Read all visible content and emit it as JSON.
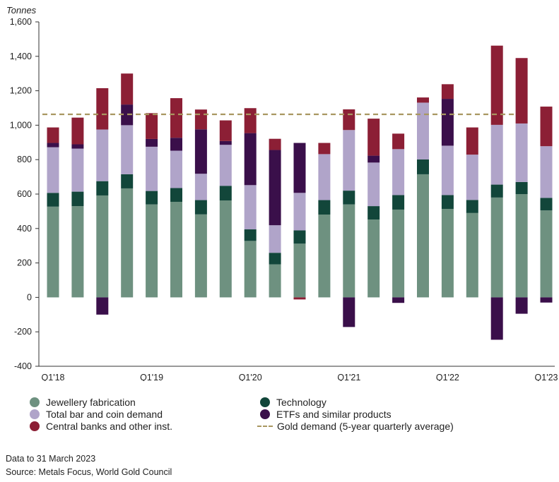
{
  "chart_data": {
    "type": "bar",
    "stacked": true,
    "ylabel": "Tonnes",
    "ylim": [
      -400,
      1600
    ],
    "yticks": [
      -400,
      -200,
      0,
      200,
      400,
      600,
      800,
      1000,
      1200,
      1400,
      1600
    ],
    "ytick_labels": [
      "-400",
      "-200",
      "0",
      "200",
      "400",
      "600",
      "800",
      "1,000",
      "1,200",
      "1,400",
      "1,600"
    ],
    "categories": [
      "Q1'18",
      "Q2'18",
      "Q3'18",
      "Q4'18",
      "Q1'19",
      "Q2'19",
      "Q3'19",
      "Q4'19",
      "Q1'20",
      "Q2'20",
      "Q3'20",
      "Q4'20",
      "Q1'21",
      "Q2'21",
      "Q3'21",
      "Q4'21",
      "Q1'22",
      "Q2'22",
      "Q3'22",
      "Q4'22",
      "Q1'23"
    ],
    "xtick_labels": [
      "Q1'18",
      "Q1'19",
      "Q1'20",
      "Q1'21",
      "Q1'22",
      "Q1'23"
    ],
    "xtick_indices": [
      0,
      4,
      8,
      12,
      16,
      20
    ],
    "series": [
      {
        "name": "Jewellery fabrication",
        "color": "#6e9180",
        "values": [
          527,
          530,
          592,
          633,
          540,
          555,
          482,
          563,
          328,
          192,
          312,
          481,
          540,
          452,
          510,
          715,
          514,
          490,
          580,
          600,
          505
        ]
      },
      {
        "name": "Technology",
        "color": "#12463a",
        "values": [
          80,
          84,
          83,
          82,
          78,
          80,
          83,
          85,
          67,
          67,
          77,
          84,
          80,
          78,
          84,
          86,
          80,
          76,
          75,
          70,
          73
        ]
      },
      {
        "name": "Total bar and coin demand",
        "color": "#b0a4c9",
        "values": [
          265,
          250,
          300,
          285,
          257,
          217,
          153,
          238,
          257,
          160,
          218,
          267,
          352,
          253,
          267,
          330,
          287,
          263,
          347,
          340,
          300
        ]
      },
      {
        "name": "ETFs and similar products",
        "color": "#3a0f4a",
        "values": [
          25,
          25,
          -100,
          120,
          45,
          75,
          258,
          22,
          302,
          437,
          290,
          0,
          -172,
          40,
          -32,
          0,
          272,
          0,
          -246,
          -95,
          -30
        ]
      },
      {
        "name": "Central banks and other inst.",
        "color": "#8c1f35",
        "values": [
          90,
          155,
          240,
          180,
          150,
          230,
          115,
          120,
          145,
          65,
          0,
          65,
          120,
          215,
          90,
          30,
          85,
          158,
          460,
          380,
          230
        ]
      }
    ],
    "negative_only_series": {
      "index": 4,
      "values": [
        0,
        0,
        0,
        0,
        0,
        0,
        0,
        0,
        0,
        0,
        -12,
        0,
        0,
        0,
        0,
        0,
        0,
        0,
        0,
        0,
        0
      ]
    },
    "reference_line": {
      "name": "Gold demand (5-year quarterly average)",
      "value": 1063,
      "color": "#a89760",
      "style": "dashed"
    },
    "legend": {
      "placement": "bottom",
      "entries": [
        {
          "label": "Jewellery fabrication",
          "color": "#6e9180",
          "shape": "dot"
        },
        {
          "label": "Technology",
          "color": "#12463a",
          "shape": "dot"
        },
        {
          "label": "Total bar and coin demand",
          "color": "#b0a4c9",
          "shape": "dot"
        },
        {
          "label": "ETFs and similar products",
          "color": "#3a0f4a",
          "shape": "dot"
        },
        {
          "label": "Central banks and other inst.",
          "color": "#8c1f35",
          "shape": "dot"
        },
        {
          "label": "Gold demand (5-year quarterly average)",
          "color": "#a89760",
          "shape": "dash"
        }
      ]
    },
    "grid": false
  },
  "footnotes": {
    "data_date": "Data to 31 March 2023",
    "source": "Source: Metals Focus, World Gold Council"
  }
}
